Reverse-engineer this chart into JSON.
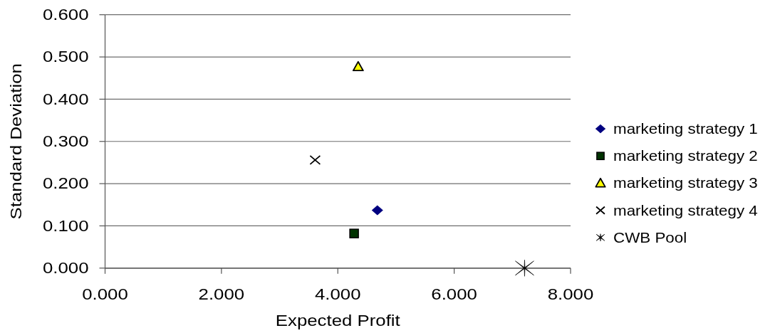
{
  "chart_data": {
    "type": "scatter",
    "xlabel": "Expected Profit",
    "ylabel": "Standard Deviation",
    "xlim": [
      0,
      8
    ],
    "ylim": [
      0,
      0.6
    ],
    "xticks": [
      {
        "value": 0,
        "label": "0.000"
      },
      {
        "value": 2,
        "label": "2.000"
      },
      {
        "value": 4,
        "label": "4.000"
      },
      {
        "value": 6,
        "label": "6.000"
      },
      {
        "value": 8,
        "label": "8.000"
      }
    ],
    "yticks": [
      {
        "value": 0,
        "label": "0.000"
      },
      {
        "value": 0.1,
        "label": "0.100"
      },
      {
        "value": 0.2,
        "label": "0.200"
      },
      {
        "value": 0.3,
        "label": "0.300"
      },
      {
        "value": 0.4,
        "label": "0.400"
      },
      {
        "value": 0.5,
        "label": "0.500"
      },
      {
        "value": 0.6,
        "label": "0.600"
      }
    ],
    "grid": "y",
    "legend": "right",
    "series": [
      {
        "name": "marketing strategy 1",
        "color": "#000080",
        "marker": "diamond",
        "x": [
          4.68
        ],
        "values": [
          0.137
        ]
      },
      {
        "name": "marketing strategy 2",
        "color": "#003300",
        "marker": "square",
        "x": [
          4.28
        ],
        "values": [
          0.082
        ]
      },
      {
        "name": "marketing strategy 3",
        "color": "#ffff00",
        "marker": "triangle",
        "x": [
          4.35
        ],
        "values": [
          0.477
        ]
      },
      {
        "name": "marketing strategy 4",
        "color": "#000000",
        "marker": "cross",
        "x": [
          3.61
        ],
        "values": [
          0.256
        ]
      },
      {
        "name": "CWB Pool",
        "color": "#000000",
        "x": [
          7.21
        ],
        "values": [
          0
        ]
      }
    ]
  }
}
